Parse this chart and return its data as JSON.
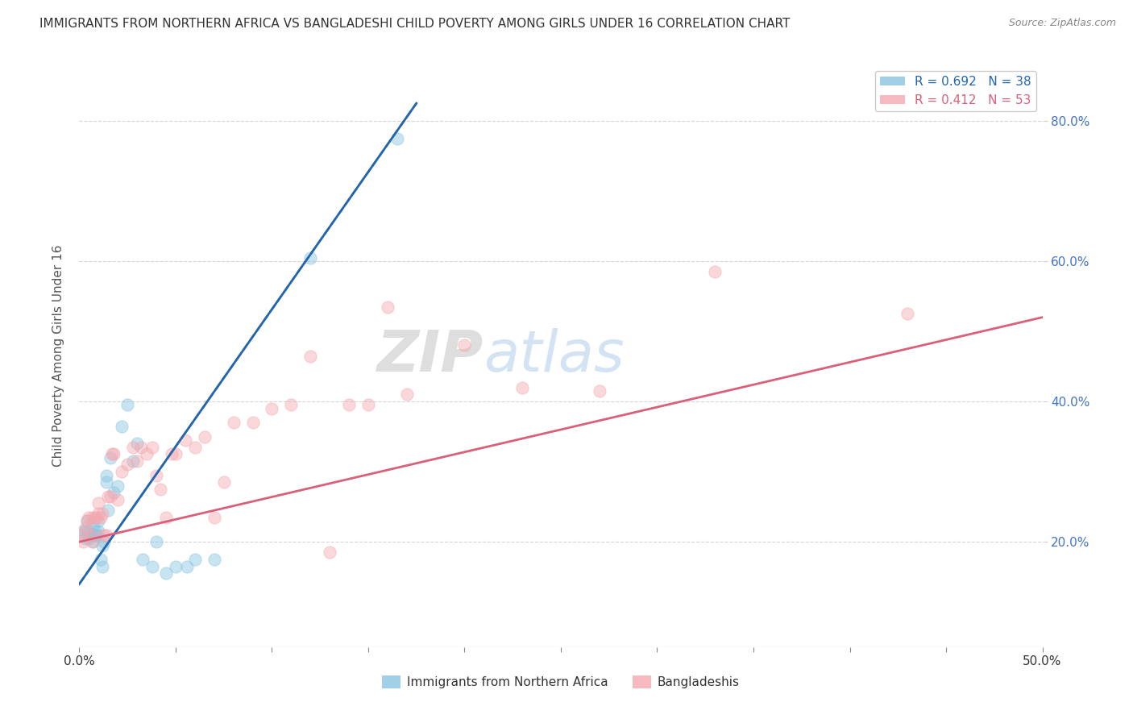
{
  "title": "IMMIGRANTS FROM NORTHERN AFRICA VS BANGLADESHI CHILD POVERTY AMONG GIRLS UNDER 16 CORRELATION CHART",
  "source": "Source: ZipAtlas.com",
  "ylabel": "Child Poverty Among Girls Under 16",
  "xlim": [
    0.0,
    0.5
  ],
  "ylim": [
    0.05,
    0.88
  ],
  "yticks": [
    0.2,
    0.4,
    0.6,
    0.8
  ],
  "ytick_labels": [
    "20.0%",
    "40.0%",
    "60.0%",
    "80.0%"
  ],
  "xticks": [
    0.0,
    0.05,
    0.1,
    0.15,
    0.2,
    0.25,
    0.3,
    0.35,
    0.4,
    0.45,
    0.5
  ],
  "xtick_edge_labels": {
    "0": "0.0%",
    "10": "50.0%"
  },
  "legend_entries": [
    {
      "label": "R = 0.692   N = 38",
      "color": "#89c4e1"
    },
    {
      "label": "R = 0.412   N = 53",
      "color": "#f4a8b0"
    }
  ],
  "blue_scatter": [
    [
      0.002,
      0.215
    ],
    [
      0.003,
      0.205
    ],
    [
      0.003,
      0.215
    ],
    [
      0.004,
      0.23
    ],
    [
      0.005,
      0.215
    ],
    [
      0.005,
      0.205
    ],
    [
      0.006,
      0.21
    ],
    [
      0.007,
      0.2
    ],
    [
      0.007,
      0.225
    ],
    [
      0.008,
      0.21
    ],
    [
      0.008,
      0.215
    ],
    [
      0.009,
      0.21
    ],
    [
      0.01,
      0.215
    ],
    [
      0.01,
      0.23
    ],
    [
      0.011,
      0.175
    ],
    [
      0.012,
      0.165
    ],
    [
      0.012,
      0.195
    ],
    [
      0.013,
      0.2
    ],
    [
      0.014,
      0.285
    ],
    [
      0.014,
      0.295
    ],
    [
      0.015,
      0.245
    ],
    [
      0.016,
      0.32
    ],
    [
      0.018,
      0.27
    ],
    [
      0.02,
      0.28
    ],
    [
      0.022,
      0.365
    ],
    [
      0.025,
      0.395
    ],
    [
      0.028,
      0.315
    ],
    [
      0.03,
      0.34
    ],
    [
      0.033,
      0.175
    ],
    [
      0.038,
      0.165
    ],
    [
      0.04,
      0.2
    ],
    [
      0.045,
      0.155
    ],
    [
      0.05,
      0.165
    ],
    [
      0.056,
      0.165
    ],
    [
      0.06,
      0.175
    ],
    [
      0.07,
      0.175
    ],
    [
      0.12,
      0.605
    ],
    [
      0.165,
      0.775
    ]
  ],
  "pink_scatter": [
    [
      0.001,
      0.21
    ],
    [
      0.002,
      0.2
    ],
    [
      0.003,
      0.22
    ],
    [
      0.004,
      0.23
    ],
    [
      0.005,
      0.235
    ],
    [
      0.006,
      0.21
    ],
    [
      0.007,
      0.2
    ],
    [
      0.007,
      0.235
    ],
    [
      0.008,
      0.235
    ],
    [
      0.009,
      0.235
    ],
    [
      0.01,
      0.24
    ],
    [
      0.01,
      0.255
    ],
    [
      0.011,
      0.235
    ],
    [
      0.012,
      0.24
    ],
    [
      0.013,
      0.21
    ],
    [
      0.014,
      0.21
    ],
    [
      0.015,
      0.265
    ],
    [
      0.016,
      0.265
    ],
    [
      0.017,
      0.325
    ],
    [
      0.018,
      0.325
    ],
    [
      0.02,
      0.26
    ],
    [
      0.022,
      0.3
    ],
    [
      0.025,
      0.31
    ],
    [
      0.028,
      0.335
    ],
    [
      0.03,
      0.315
    ],
    [
      0.032,
      0.335
    ],
    [
      0.035,
      0.325
    ],
    [
      0.038,
      0.335
    ],
    [
      0.04,
      0.295
    ],
    [
      0.042,
      0.275
    ],
    [
      0.045,
      0.235
    ],
    [
      0.048,
      0.325
    ],
    [
      0.05,
      0.325
    ],
    [
      0.055,
      0.345
    ],
    [
      0.06,
      0.335
    ],
    [
      0.065,
      0.35
    ],
    [
      0.07,
      0.235
    ],
    [
      0.075,
      0.285
    ],
    [
      0.08,
      0.37
    ],
    [
      0.09,
      0.37
    ],
    [
      0.1,
      0.39
    ],
    [
      0.11,
      0.395
    ],
    [
      0.12,
      0.465
    ],
    [
      0.13,
      0.185
    ],
    [
      0.14,
      0.395
    ],
    [
      0.15,
      0.395
    ],
    [
      0.16,
      0.535
    ],
    [
      0.17,
      0.41
    ],
    [
      0.2,
      0.48
    ],
    [
      0.23,
      0.42
    ],
    [
      0.27,
      0.415
    ],
    [
      0.33,
      0.585
    ],
    [
      0.43,
      0.525
    ]
  ],
  "blue_line_x": [
    0.0,
    0.175
  ],
  "blue_line_y": [
    0.14,
    0.825
  ],
  "pink_line_x": [
    0.0,
    0.5
  ],
  "pink_line_y": [
    0.2,
    0.52
  ],
  "watermark_zip": "ZIP",
  "watermark_atlas": "atlas",
  "scatter_size": 120,
  "scatter_alpha": 0.45,
  "blue_color": "#89c4e1",
  "pink_color": "#f4a8b0",
  "blue_line_color": "#2166ac",
  "pink_line_color": "#d9607a",
  "background_color": "#ffffff",
  "grid_color": "#d0d0d0",
  "title_fontsize": 11,
  "axis_label_fontsize": 11,
  "tick_fontsize": 11,
  "right_tick_color": "#4472c4"
}
